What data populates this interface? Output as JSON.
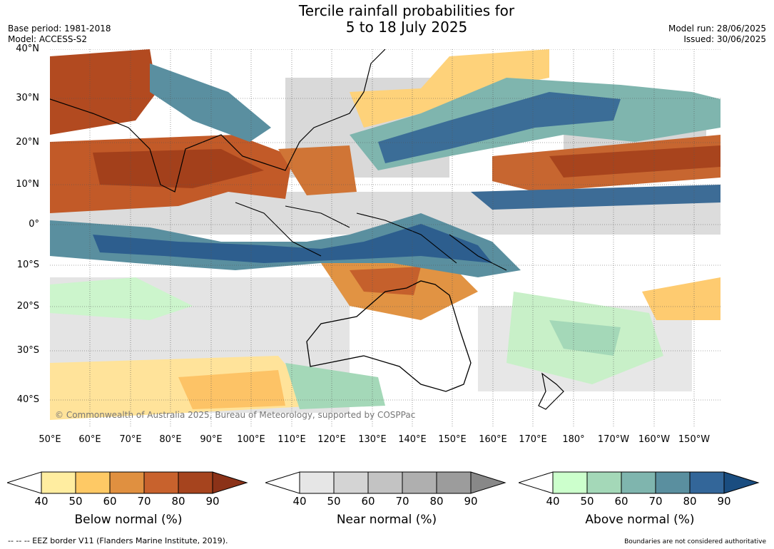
{
  "title": {
    "line1": "Tercile rainfall probabilities for",
    "line2": "5 to 18 July 2025"
  },
  "meta_left": {
    "base_period": "Base period: 1981-2018",
    "model": "Model: ACCESS-S2"
  },
  "meta_right": {
    "model_run": "Model run: 28/06/2025",
    "issued": "Issued: 30/06/2025"
  },
  "lat_labels": [
    "40°N",
    "30°N",
    "20°N",
    "10°N",
    "0°",
    "10°S",
    "20°S",
    "30°S",
    "40°S"
  ],
  "lon_labels": [
    "50°E",
    "60°E",
    "70°E",
    "80°E",
    "90°E",
    "100°E",
    "110°E",
    "120°E",
    "130°E",
    "140°E",
    "150°E",
    "160°E",
    "170°E",
    "180°",
    "170°W",
    "160°W",
    "150°W"
  ],
  "copyright": "© Commonwealth of Australia 2025, Bureau of Meteorology, supported by COSPPac",
  "colorbars": [
    {
      "id": "below",
      "title": "Below normal (%)",
      "ticks": [
        "40",
        "50",
        "60",
        "70",
        "80",
        "90"
      ],
      "colors": [
        "#ffffff",
        "#ffeda0",
        "#fec965",
        "#e09040",
        "#c8622d",
        "#a6441e",
        "#8b3218"
      ]
    },
    {
      "id": "near",
      "title": "Near normal (%)",
      "ticks": [
        "40",
        "50",
        "60",
        "70",
        "80",
        "90"
      ],
      "colors": [
        "#ffffff",
        "#e6e6e6",
        "#d4d4d4",
        "#c3c3c3",
        "#afafaf",
        "#9c9c9c",
        "#888888"
      ]
    },
    {
      "id": "above",
      "title": "Above normal (%)",
      "ticks": [
        "40",
        "50",
        "60",
        "70",
        "80",
        "90"
      ],
      "colors": [
        "#ffffff",
        "#ccffcc",
        "#a4d8b8",
        "#7fb5ae",
        "#5a8f9f",
        "#336699",
        "#1a4d80"
      ]
    }
  ],
  "footer_left": "--  --  -- EEZ border V11 (Flanders Marine Institute, 2019).",
  "footer_right": "Boundaries are not considered authoritative"
}
